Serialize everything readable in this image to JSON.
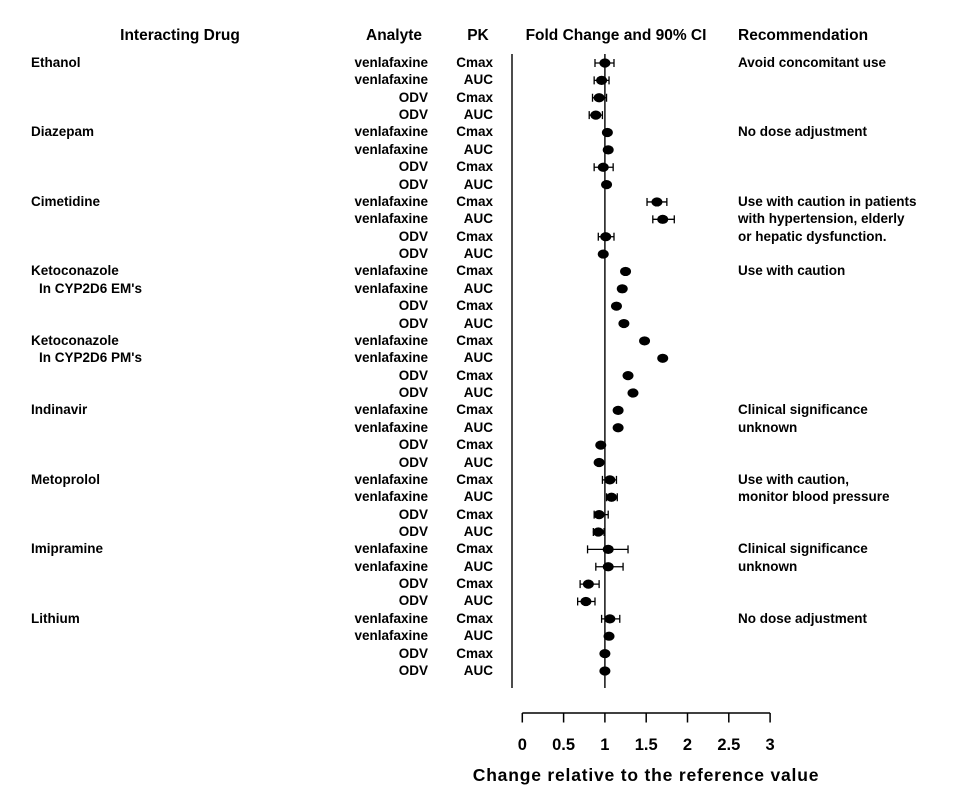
{
  "headers": {
    "interacting_drug": "Interacting Drug",
    "analyte": "Analyte",
    "pk": "PK",
    "fold_change": "Fold Change and 90% CI",
    "recommendation": "Recommendation"
  },
  "colors": {
    "foreground": "#000000",
    "background": "#ffffff"
  },
  "chart_data": {
    "type": "forest",
    "title": "",
    "x_axis": {
      "label": "Change relative to the reference value",
      "ticks": [
        0,
        0.5,
        1,
        1.5,
        2,
        2.5,
        3
      ],
      "range": [
        0,
        3
      ],
      "reference_line": 1
    },
    "groups": [
      {
        "drug_lines": [
          "Ethanol"
        ],
        "recommendation_lines": [
          "Avoid concomitant use"
        ],
        "rows": [
          {
            "analyte": "venlafaxine",
            "param": "Cmax",
            "value": 1.0,
            "ci_low": 0.88,
            "ci_high": 1.11
          },
          {
            "analyte": "venlafaxine",
            "param": "AUC",
            "value": 0.96,
            "ci_low": 0.87,
            "ci_high": 1.05
          },
          {
            "analyte": "ODV",
            "param": "Cmax",
            "value": 0.93,
            "ci_low": 0.85,
            "ci_high": 1.02
          },
          {
            "analyte": "ODV",
            "param": "AUC",
            "value": 0.89,
            "ci_low": 0.81,
            "ci_high": 0.97
          }
        ]
      },
      {
        "drug_lines": [
          "Diazepam"
        ],
        "recommendation_lines": [
          "No dose adjustment"
        ],
        "rows": [
          {
            "analyte": "venlafaxine",
            "param": "Cmax",
            "value": 1.03,
            "ci_low": null,
            "ci_high": null
          },
          {
            "analyte": "venlafaxine",
            "param": "AUC",
            "value": 1.04,
            "ci_low": null,
            "ci_high": null
          },
          {
            "analyte": "ODV",
            "param": "Cmax",
            "value": 0.98,
            "ci_low": 0.87,
            "ci_high": 1.1
          },
          {
            "analyte": "ODV",
            "param": "AUC",
            "value": 1.02,
            "ci_low": null,
            "ci_high": null
          }
        ]
      },
      {
        "drug_lines": [
          "Cimetidine"
        ],
        "recommendation_lines": [
          "Use with caution in patients",
          "with hypertension, elderly",
          "or hepatic dysfunction."
        ],
        "rows": [
          {
            "analyte": "venlafaxine",
            "param": "Cmax",
            "value": 1.63,
            "ci_low": 1.51,
            "ci_high": 1.75
          },
          {
            "analyte": "venlafaxine",
            "param": "AUC",
            "value": 1.7,
            "ci_low": 1.58,
            "ci_high": 1.84
          },
          {
            "analyte": "ODV",
            "param": "Cmax",
            "value": 1.01,
            "ci_low": 0.92,
            "ci_high": 1.11
          },
          {
            "analyte": "ODV",
            "param": "AUC",
            "value": 0.98,
            "ci_low": null,
            "ci_high": null
          }
        ]
      },
      {
        "drug_lines": [
          "Ketoconazole",
          "In CYP2D6 EM's"
        ],
        "recommendation_lines": [
          "Use with caution"
        ],
        "rows": [
          {
            "analyte": "venlafaxine",
            "param": "Cmax",
            "value": 1.25,
            "ci_low": null,
            "ci_high": null
          },
          {
            "analyte": "venlafaxine",
            "param": "AUC",
            "value": 1.21,
            "ci_low": null,
            "ci_high": null
          },
          {
            "analyte": "ODV",
            "param": "Cmax",
            "value": 1.14,
            "ci_low": null,
            "ci_high": null
          },
          {
            "analyte": "ODV",
            "param": "AUC",
            "value": 1.23,
            "ci_low": null,
            "ci_high": null
          }
        ]
      },
      {
        "drug_lines": [
          "Ketoconazole",
          "In CYP2D6 PM's"
        ],
        "recommendation_lines": [],
        "rows": [
          {
            "analyte": "venlafaxine",
            "param": "Cmax",
            "value": 1.48,
            "ci_low": null,
            "ci_high": null
          },
          {
            "analyte": "venlafaxine",
            "param": "AUC",
            "value": 1.7,
            "ci_low": null,
            "ci_high": null
          },
          {
            "analyte": "ODV",
            "param": "Cmax",
            "value": 1.28,
            "ci_low": null,
            "ci_high": null
          },
          {
            "analyte": "ODV",
            "param": "AUC",
            "value": 1.34,
            "ci_low": null,
            "ci_high": null
          }
        ]
      },
      {
        "drug_lines": [
          "Indinavir"
        ],
        "recommendation_lines": [
          "Clinical significance",
          "unknown"
        ],
        "rows": [
          {
            "analyte": "venlafaxine",
            "param": "Cmax",
            "value": 1.16,
            "ci_low": null,
            "ci_high": null
          },
          {
            "analyte": "venlafaxine",
            "param": "AUC",
            "value": 1.16,
            "ci_low": null,
            "ci_high": null
          },
          {
            "analyte": "ODV",
            "param": "Cmax",
            "value": 0.95,
            "ci_low": null,
            "ci_high": null
          },
          {
            "analyte": "ODV",
            "param": "AUC",
            "value": 0.93,
            "ci_low": null,
            "ci_high": null
          }
        ]
      },
      {
        "drug_lines": [
          "Metoprolol"
        ],
        "recommendation_lines": [
          "Use with caution,",
          "monitor blood pressure"
        ],
        "rows": [
          {
            "analyte": "venlafaxine",
            "param": "Cmax",
            "value": 1.06,
            "ci_low": 0.97,
            "ci_high": 1.14
          },
          {
            "analyte": "venlafaxine",
            "param": "AUC",
            "value": 1.08,
            "ci_low": 1.02,
            "ci_high": 1.15
          },
          {
            "analyte": "ODV",
            "param": "Cmax",
            "value": 0.93,
            "ci_low": 0.87,
            "ci_high": 1.04
          },
          {
            "analyte": "ODV",
            "param": "AUC",
            "value": 0.92,
            "ci_low": 0.86,
            "ci_high": 0.99
          }
        ]
      },
      {
        "drug_lines": [
          "Imipramine"
        ],
        "recommendation_lines": [
          "Clinical significance",
          "unknown"
        ],
        "rows": [
          {
            "analyte": "venlafaxine",
            "param": "Cmax",
            "value": 1.04,
            "ci_low": 0.79,
            "ci_high": 1.28
          },
          {
            "analyte": "venlafaxine",
            "param": "AUC",
            "value": 1.04,
            "ci_low": 0.89,
            "ci_high": 1.22
          },
          {
            "analyte": "ODV",
            "param": "Cmax",
            "value": 0.8,
            "ci_low": 0.7,
            "ci_high": 0.93
          },
          {
            "analyte": "ODV",
            "param": "AUC",
            "value": 0.77,
            "ci_low": 0.67,
            "ci_high": 0.88
          }
        ]
      },
      {
        "drug_lines": [
          "Lithium"
        ],
        "recommendation_lines": [
          "No dose adjustment"
        ],
        "rows": [
          {
            "analyte": "venlafaxine",
            "param": "Cmax",
            "value": 1.06,
            "ci_low": 0.96,
            "ci_high": 1.18
          },
          {
            "analyte": "venlafaxine",
            "param": "AUC",
            "value": 1.05,
            "ci_low": null,
            "ci_high": null
          },
          {
            "analyte": "ODV",
            "param": "Cmax",
            "value": 1.0,
            "ci_low": null,
            "ci_high": null
          },
          {
            "analyte": "ODV",
            "param": "AUC",
            "value": 1.0,
            "ci_low": null,
            "ci_high": null
          }
        ]
      }
    ]
  }
}
